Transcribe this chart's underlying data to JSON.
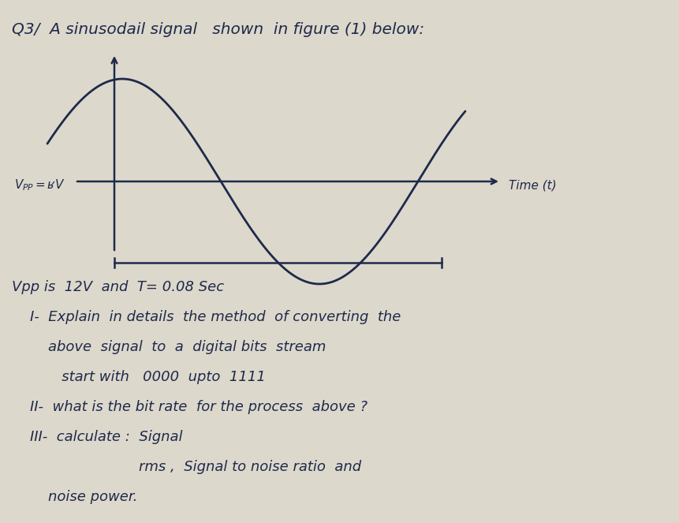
{
  "paper_color": "#ddd8cc",
  "text_color": "#1e2a4a",
  "line_color": "#1e2a4a",
  "title": "Q3/  A sinusodail signal   shown  in figure (1) below:",
  "vpp_label": "Vₚₚ=ʁV",
  "time_label": "Time (t)",
  "lines": [
    "Vpp is  12V  and  T= 0.08 Sec",
    "    I-  Explain  in details  the method  of converting  the",
    "        above  signal  to  a  digital bits  stream",
    "           start with   0000  upto  1111",
    "    II-  what is the bit rate  for the process  above ?",
    "    III-  calculate :  Signal",
    "                            rms ,  Signal to noise ratio  and",
    "        noise power."
  ],
  "font_size_title": 14.5,
  "font_size_body": 13.0
}
